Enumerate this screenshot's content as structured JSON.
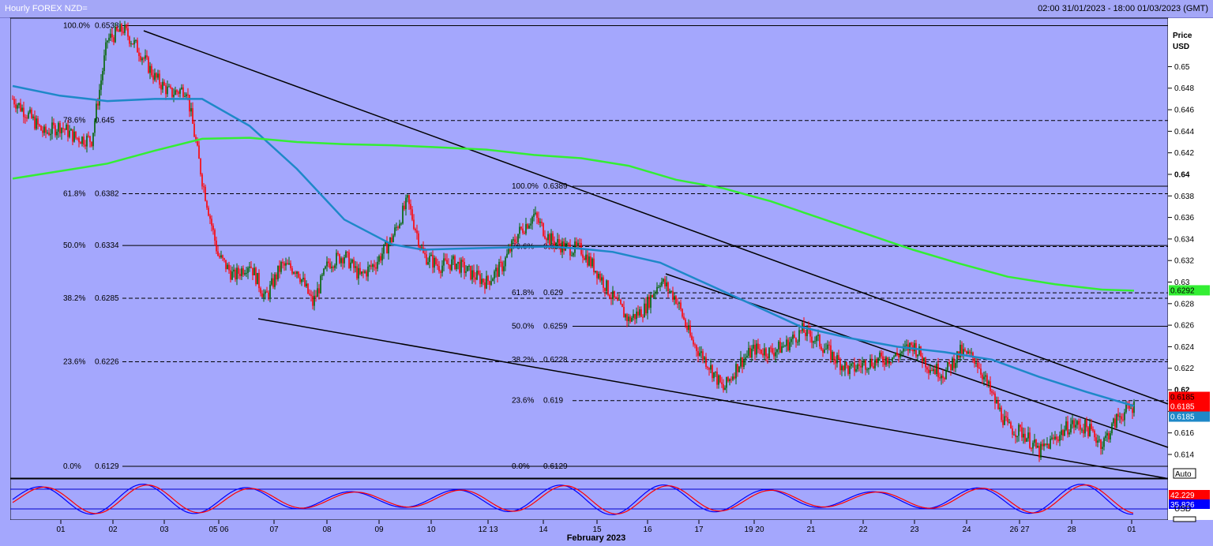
{
  "header": {
    "title": "Hourly FOREX NZD=",
    "range": "02:00 31/01/2023 - 18:00 01/03/2023 (GMT)"
  },
  "price_axis": {
    "label_line1": "Price",
    "label_line2": "USD",
    "auto_label": "Auto"
  },
  "colors": {
    "background": "#a4a7fd",
    "candle_up": "#006400",
    "candle_down": "#ff0000",
    "ma_fast": "#1e88c8",
    "ma_slow": "#33ee33",
    "stoch_k": "#0000ff",
    "stoch_d": "#ff0000"
  },
  "chart_data": [
    {
      "type": "line",
      "title": "Hourly FOREX NZD=",
      "ylabel": "Price USD",
      "xlabel": "February 2023",
      "ylim": [
        0.6118,
        0.6545
      ],
      "ytick_labels": [
        "0.614",
        "0.616",
        "0.618",
        "0.62",
        "0.622",
        "0.624",
        "0.626",
        "0.628",
        "0.63",
        "0.632",
        "0.634",
        "0.636",
        "0.638",
        "0.64",
        "0.642",
        "0.644",
        "0.646",
        "0.648",
        "0.65"
      ],
      "yticks": [
        0.614,
        0.616,
        0.618,
        0.62,
        0.622,
        0.624,
        0.626,
        0.628,
        0.63,
        0.632,
        0.634,
        0.636,
        0.638,
        0.64,
        0.642,
        0.644,
        0.646,
        0.648,
        0.65
      ],
      "x_labels": [
        "01",
        "02",
        "03",
        "05 06",
        "07",
        "08",
        "09",
        "10",
        "12 13",
        "14",
        "15",
        "16",
        "17",
        "19 20",
        "21",
        "22",
        "23",
        "24",
        "26 27",
        "28",
        "01"
      ],
      "x_month_label": "February 2023",
      "series": [
        {
          "kind": "candlestick_close",
          "x": [
            0,
            20,
            40,
            60,
            80,
            100,
            120,
            140,
            160,
            180,
            200,
            220,
            240,
            260,
            280,
            300,
            320,
            340,
            360,
            380,
            400,
            420,
            440,
            460,
            480,
            500,
            520,
            540,
            560,
            580,
            600,
            620,
            640,
            660,
            680,
            700,
            720,
            740,
            760,
            780,
            800,
            820,
            840,
            860,
            880,
            900,
            920,
            940,
            960,
            980,
            1000,
            1020,
            1040,
            1060,
            1080,
            1100,
            1120,
            1140,
            1160,
            1180,
            1200,
            1220,
            1240,
            1260,
            1280,
            1300,
            1320,
            1340,
            1360,
            1380,
            1400,
            1420
          ],
          "values": [
            0.647,
            0.6455,
            0.6438,
            0.6445,
            0.6434,
            0.6432,
            0.6525,
            0.6535,
            0.6515,
            0.649,
            0.6475,
            0.648,
            0.6395,
            0.6325,
            0.6305,
            0.6318,
            0.6285,
            0.6315,
            0.6312,
            0.628,
            0.6318,
            0.6325,
            0.6305,
            0.6318,
            0.634,
            0.6375,
            0.6325,
            0.6315,
            0.6318,
            0.6308,
            0.63,
            0.6315,
            0.6345,
            0.6362,
            0.634,
            0.6332,
            0.633,
            0.631,
            0.6285,
            0.6265,
            0.6275,
            0.6302,
            0.6285,
            0.6245,
            0.6225,
            0.62,
            0.6225,
            0.6238,
            0.6235,
            0.6242,
            0.6255,
            0.6245,
            0.623,
            0.6218,
            0.6225,
            0.6228,
            0.6232,
            0.6242,
            0.6222,
            0.6215,
            0.6235,
            0.6228,
            0.6195,
            0.6165,
            0.616,
            0.6142,
            0.6155,
            0.6168,
            0.6165,
            0.615,
            0.6175,
            0.6185
          ]
        },
        {
          "name": "",
          "kind": "ma_fast",
          "x": [
            0,
            60,
            120,
            180,
            240,
            300,
            360,
            420,
            480,
            520,
            560,
            620,
            680,
            720,
            760,
            820,
            880,
            940,
            1000,
            1060,
            1120,
            1180,
            1240,
            1300,
            1360,
            1420
          ],
          "values": [
            0.6482,
            0.6473,
            0.6468,
            0.647,
            0.647,
            0.6445,
            0.6405,
            0.6358,
            0.6335,
            0.633,
            0.6331,
            0.6332,
            0.6333,
            0.6331,
            0.6328,
            0.6318,
            0.6298,
            0.6278,
            0.6258,
            0.6248,
            0.624,
            0.6235,
            0.6228,
            0.6212,
            0.6198,
            0.6185
          ]
        },
        {
          "name": "",
          "kind": "ma_slow",
          "x": [
            0,
            60,
            120,
            180,
            240,
            300,
            360,
            420,
            480,
            540,
            600,
            660,
            720,
            780,
            840,
            900,
            960,
            1020,
            1080,
            1140,
            1200,
            1260,
            1320,
            1380,
            1420
          ],
          "values": [
            0.6396,
            0.6403,
            0.641,
            0.6422,
            0.6433,
            0.6434,
            0.643,
            0.6428,
            0.6427,
            0.6425,
            0.6423,
            0.6418,
            0.6415,
            0.6408,
            0.6395,
            0.6387,
            0.6375,
            0.636,
            0.6345,
            0.633,
            0.6317,
            0.6305,
            0.6298,
            0.6293,
            0.6292
          ]
        }
      ],
      "fib_sets": [
        {
          "levels": [
            {
              "label": "100.0%",
              "value": "0.6538"
            },
            {
              "label": "78.6%",
              "value": "0.645"
            },
            {
              "label": "61.8%",
              "value": "0.6382"
            },
            {
              "label": "50.0%",
              "value": "0.6334"
            },
            {
              "label": "38.2%",
              "value": "0.6285"
            },
            {
              "label": "23.6%",
              "value": "0.6226"
            },
            {
              "label": "0.0%",
              "value": "0.6129"
            }
          ]
        },
        {
          "levels": [
            {
              "label": "100.0%",
              "value": "0.6389"
            },
            {
              "label": "76.6%",
              "value": "0.6333"
            },
            {
              "label": "61.8%",
              "value": "0.629"
            },
            {
              "label": "50.0%",
              "value": "0.6259"
            },
            {
              "label": "38.2%",
              "value": "0.6228"
            },
            {
              "label": "23.6%",
              "value": "0.619"
            },
            {
              "label": "0.0%",
              "value": "0.6129"
            }
          ]
        }
      ],
      "price_tags": [
        {
          "value": "0.6185",
          "color": "#ff0000",
          "value2": "0.6185"
        },
        {
          "value": "0.6185",
          "color": "#1e88c8"
        },
        {
          "value": "0.6292",
          "color": "#33ee33"
        }
      ]
    },
    {
      "type": "line",
      "title": "",
      "ylim": [
        0,
        100
      ],
      "levels": [
        80,
        20
      ],
      "price_tags": [
        {
          "value": "42.229",
          "color": "#ff0000"
        },
        {
          "value": "35.826",
          "color": "#0000ff"
        }
      ],
      "usd_label": "USD"
    }
  ]
}
